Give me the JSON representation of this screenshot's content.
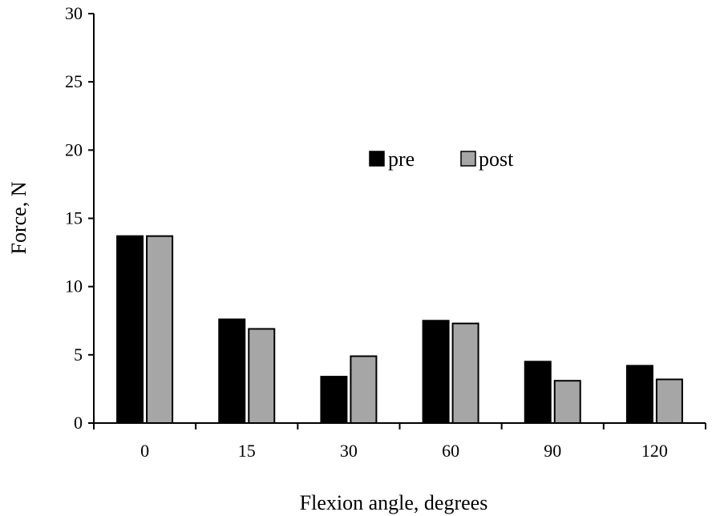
{
  "chart_data": {
    "type": "bar",
    "title": "",
    "xlabel": "Flexion angle, degrees",
    "ylabel": "Force, N",
    "categories": [
      "0",
      "15",
      "30",
      "60",
      "90",
      "120"
    ],
    "series": [
      {
        "name": "pre",
        "values": [
          13.7,
          7.6,
          3.4,
          7.5,
          4.5,
          4.2
        ],
        "color": "#000000"
      },
      {
        "name": "post",
        "values": [
          13.7,
          6.9,
          4.9,
          7.3,
          3.1,
          3.2
        ],
        "color": "#a6a6a6"
      }
    ],
    "ylim": [
      0,
      30
    ],
    "yticks": [
      0,
      5,
      10,
      15,
      20,
      25,
      30
    ],
    "grid": false,
    "legend_position": "upper-center"
  }
}
